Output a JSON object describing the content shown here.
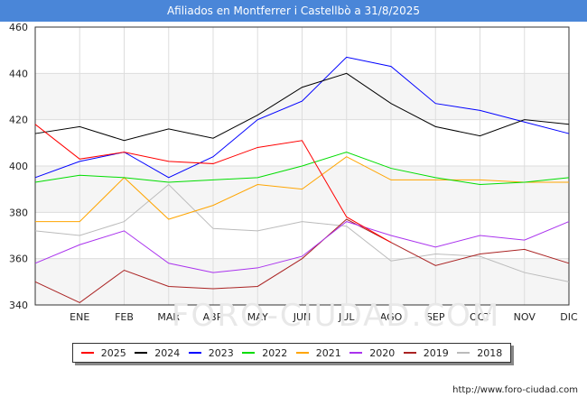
{
  "title": "Afiliados en Montferrer i Castellbò a 31/8/2025",
  "source_url": "http://www.foro-ciudad.com",
  "watermark": "FORO-CIUDAD.COM",
  "chart_data": {
    "type": "line",
    "categories": [
      "",
      "ENE",
      "FEB",
      "MAR",
      "ABR",
      "MAY",
      "JUN",
      "JUL",
      "AGO",
      "SEP",
      "OCT",
      "NOV",
      "DIC"
    ],
    "ylim": [
      340,
      460
    ],
    "yticks": [
      340,
      360,
      380,
      400,
      420,
      440,
      460
    ],
    "grid": true,
    "legend_position": "bottom",
    "series": [
      {
        "name": "2025",
        "color": "#ff0000",
        "values": [
          418,
          403,
          406,
          402,
          401,
          408,
          411,
          378,
          367,
          null,
          null,
          null,
          null
        ]
      },
      {
        "name": "2024",
        "color": "#000000",
        "values": [
          414,
          417,
          411,
          416,
          412,
          422,
          434,
          440,
          427,
          417,
          413,
          420,
          418
        ]
      },
      {
        "name": "2023",
        "color": "#0000ff",
        "values": [
          395,
          402,
          406,
          395,
          404,
          420,
          428,
          447,
          443,
          427,
          424,
          419,
          414
        ]
      },
      {
        "name": "2022",
        "color": "#00dd00",
        "values": [
          393,
          396,
          395,
          393,
          394,
          395,
          400,
          406,
          399,
          395,
          392,
          393,
          395
        ]
      },
      {
        "name": "2021",
        "color": "#ffa500",
        "values": [
          376,
          376,
          395,
          377,
          383,
          392,
          390,
          404,
          394,
          394,
          394,
          393,
          393
        ]
      },
      {
        "name": "2020",
        "color": "#aa33ee",
        "values": [
          358,
          366,
          372,
          358,
          354,
          356,
          361,
          376,
          370,
          365,
          370,
          368,
          376
        ]
      },
      {
        "name": "2019",
        "color": "#aa2222",
        "values": [
          350,
          341,
          355,
          348,
          347,
          348,
          360,
          377,
          367,
          357,
          362,
          364,
          358
        ]
      },
      {
        "name": "2018",
        "color": "#bbbbbb",
        "values": [
          372,
          370,
          376,
          392,
          373,
          372,
          376,
          374,
          359,
          362,
          361,
          354,
          350
        ]
      }
    ]
  }
}
